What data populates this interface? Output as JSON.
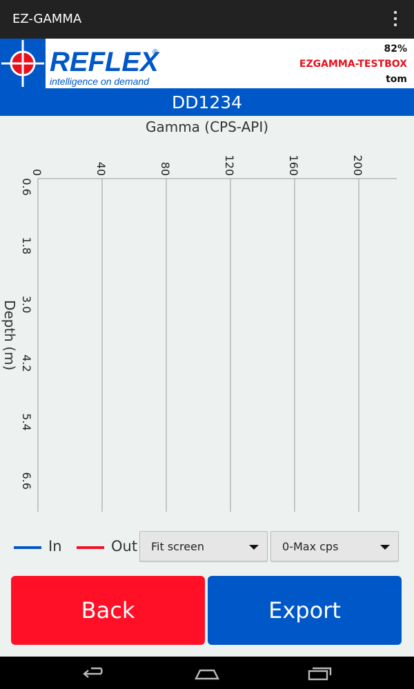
{
  "appbar": {
    "title": "EZ-GAMMA",
    "menu_icon": "overflow-menu-icon"
  },
  "brand": {
    "logo_text": "REFLEX",
    "logo_tagline": "intelligence on demand",
    "battery": "82%",
    "device": "EZGAMMA-TESTBOX",
    "user": "tom"
  },
  "hole": {
    "id": "DD1234"
  },
  "colors": {
    "accent": "#0057c8",
    "danger": "#ff1026",
    "in_series": "#0057c8",
    "out_series": "#f0102a",
    "background": "#edf1f0"
  },
  "chart_data": {
    "type": "line",
    "title": "Gamma (CPS-API)",
    "xlabel": "Gamma (CPS-API)",
    "ylabel": "Depth (m)",
    "x_ticks": [
      0,
      40,
      80,
      120,
      160,
      200
    ],
    "y_ticks": [
      0.6,
      1.8,
      3.0,
      4.2,
      5.4,
      6.6
    ],
    "xlim": [
      0,
      220
    ],
    "ylim": [
      0.6,
      7.4
    ],
    "grid": true,
    "series": [
      {
        "name": "In",
        "color": "#0057c8",
        "x": [],
        "y": []
      },
      {
        "name": "Out",
        "color": "#f0102a",
        "x": [],
        "y": []
      }
    ]
  },
  "legend": {
    "in_label": "In",
    "out_label": "Out"
  },
  "controls": {
    "zoom_value": "Fit screen",
    "range_value": "0-Max cps"
  },
  "buttons": {
    "back": "Back",
    "export": "Export"
  },
  "navbar": {
    "back_icon": "back-icon",
    "home_icon": "home-icon",
    "recents_icon": "recents-icon"
  }
}
